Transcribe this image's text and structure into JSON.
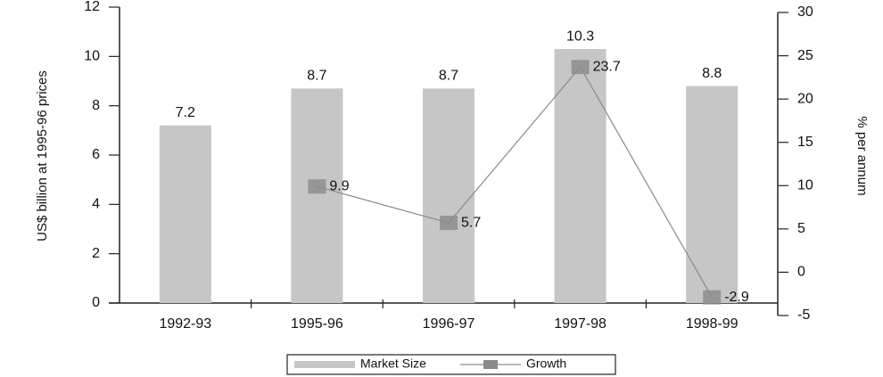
{
  "chart_data": {
    "type": "bar-line",
    "categories": [
      "1992-93",
      "1995-96",
      "1996-97",
      "1997-98",
      "1998-99"
    ],
    "series": [
      {
        "name": "Market Size",
        "type": "bar",
        "color": "#c6c6c6",
        "values": [
          7.2,
          8.7,
          8.7,
          10.3,
          8.8
        ]
      },
      {
        "name": "Growth",
        "type": "line",
        "axis": "y2",
        "color": "#8a8a8a",
        "values": [
          null,
          9.9,
          5.7,
          23.7,
          -2.9
        ]
      }
    ],
    "y_label": "US$ billion at 1995-96 prices",
    "y2_label": "% per annum",
    "ylim": [
      0,
      12
    ],
    "yticks": [
      0,
      2,
      4,
      6,
      8,
      10,
      12
    ],
    "y2lim": [
      -5,
      30
    ],
    "y2ticks": [
      -5,
      0,
      5,
      10,
      15,
      20,
      25,
      30
    ],
    "legend": "bottom"
  }
}
